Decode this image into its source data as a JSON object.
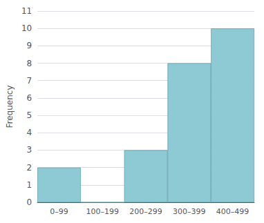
{
  "chart_data": {
    "type": "bar",
    "categories": [
      "0–99",
      "100–199",
      "200–299",
      "300–399",
      "400–499"
    ],
    "values": [
      2,
      0,
      3,
      8,
      10
    ],
    "color": "#8ecad4",
    "ylabel": "Frequency",
    "ylim": [
      0,
      11
    ],
    "yticks": [
      0,
      1,
      2,
      3,
      4,
      5,
      6,
      7,
      8,
      9,
      10,
      11
    ],
    "grid": true
  }
}
